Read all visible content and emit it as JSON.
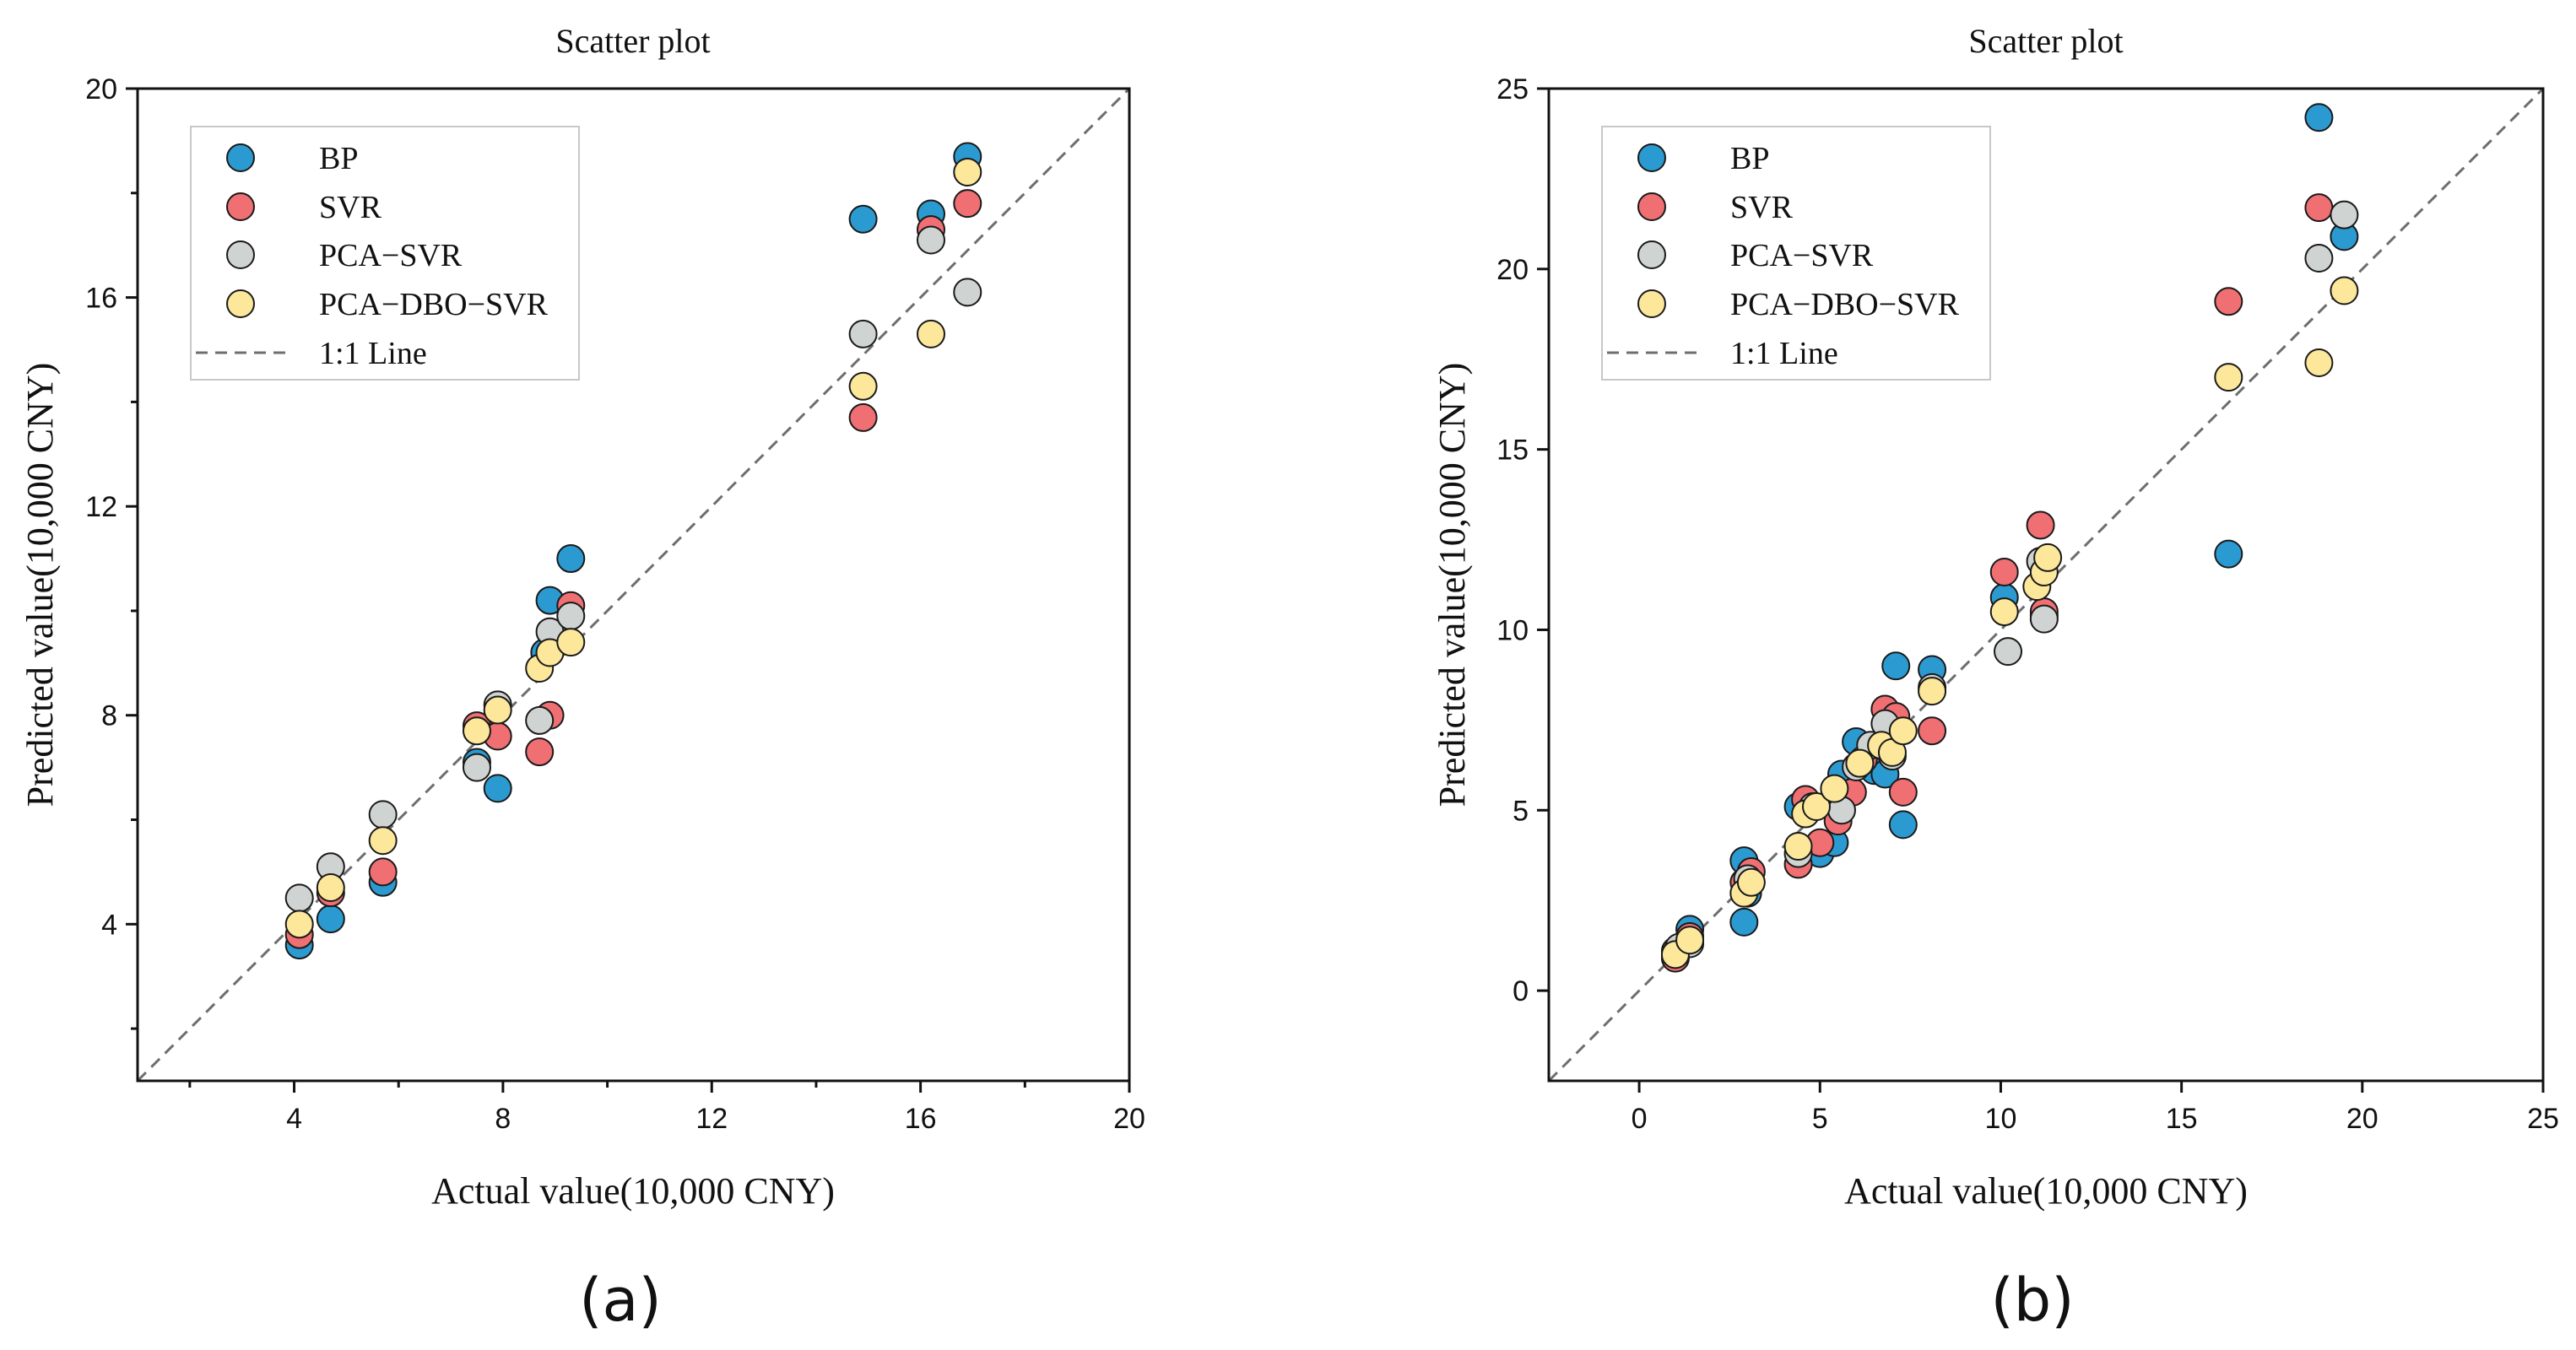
{
  "figure": {
    "panel_labels": [
      "(a)",
      "(b)"
    ]
  },
  "colors": {
    "BP": "#2b9ad0",
    "SVR": "#ef6f73",
    "PCA-SVR": "#cfd3d1",
    "PCA-DBO-SVR": "#fce79a",
    "edge": "#1a1a1a",
    "line": "#6e6e6e"
  },
  "chart_data": [
    {
      "type": "scatter",
      "title": "Scatter plot",
      "xlabel": "Actual value(10,000 CNY)",
      "ylabel": "Predicted value(10,000 CNY)",
      "xlim": [
        1,
        20
      ],
      "ylim": [
        1,
        20
      ],
      "xticks": [
        4,
        8,
        12,
        16,
        20
      ],
      "yticks": [
        4,
        8,
        12,
        16,
        20
      ],
      "xtick_labels": [
        "4",
        "8",
        "12",
        "16",
        "20"
      ],
      "ytick_labels": [
        "4",
        "8",
        "12",
        "16",
        "20"
      ],
      "legend": {
        "position": "top-left",
        "entries": [
          "BP",
          "SVR",
          "PCA−SVR",
          "PCA−DBO−SVR"
        ],
        "line_label": "1:1 Line"
      },
      "series": [
        {
          "name": "BP",
          "x": [
            4.1,
            4.7,
            5.7,
            7.5,
            7.9,
            8.8,
            8.9,
            9.3,
            14.9,
            16.2,
            16.9
          ],
          "y": [
            3.6,
            4.1,
            4.8,
            7.1,
            6.6,
            9.2,
            10.2,
            11.0,
            17.5,
            17.6,
            18.7
          ]
        },
        {
          "name": "SVR",
          "x": [
            4.1,
            4.7,
            5.7,
            7.5,
            7.9,
            8.7,
            8.9,
            9.3,
            14.9,
            16.2,
            16.9
          ],
          "y": [
            3.8,
            4.6,
            5.0,
            7.8,
            7.6,
            7.3,
            8.0,
            10.1,
            13.7,
            17.3,
            17.8
          ]
        },
        {
          "name": "PCA−SVR",
          "x": [
            4.1,
            4.7,
            5.7,
            7.5,
            7.9,
            8.7,
            8.9,
            9.3,
            14.9,
            16.2,
            16.9
          ],
          "y": [
            4.5,
            5.1,
            6.1,
            7.0,
            8.2,
            7.9,
            9.6,
            9.9,
            15.3,
            17.1,
            16.1
          ]
        },
        {
          "name": "PCA−DBO−SVR",
          "x": [
            4.1,
            4.7,
            5.7,
            7.5,
            7.9,
            8.7,
            8.9,
            9.3,
            14.9,
            16.2,
            16.9
          ],
          "y": [
            4.0,
            4.7,
            5.6,
            7.7,
            8.1,
            8.9,
            9.2,
            9.4,
            14.3,
            15.3,
            18.4
          ]
        }
      ]
    },
    {
      "type": "scatter",
      "title": "Scatter plot",
      "xlabel": "Actual value(10,000 CNY)",
      "ylabel": "Predicted value(10,000 CNY)",
      "xlim": [
        -2.5,
        25
      ],
      "ylim": [
        -2.5,
        25
      ],
      "xticks": [
        0,
        5,
        10,
        15,
        20,
        25
      ],
      "yticks": [
        0,
        5,
        10,
        15,
        20,
        25
      ],
      "xtick_labels": [
        "0",
        "5",
        "10",
        "15",
        "20",
        "25"
      ],
      "ytick_labels": [
        "0",
        "5",
        "10",
        "15",
        "20",
        "25"
      ],
      "legend": {
        "position": "top-left",
        "entries": [
          "BP",
          "SVR",
          "PCA−SVR",
          "PCA−DBO−SVR"
        ],
        "line_label": "1:1 Line"
      },
      "series": [
        {
          "name": "BP",
          "x": [
            1.0,
            1.4,
            2.9,
            2.9,
            3.0,
            4.4,
            5.0,
            5.4,
            5.6,
            6.0,
            6.5,
            6.8,
            7.1,
            7.3,
            8.1,
            10.1,
            11.2,
            16.3,
            18.8,
            19.5
          ],
          "y": [
            1.1,
            1.7,
            1.9,
            3.6,
            2.7,
            5.1,
            3.8,
            4.1,
            6.0,
            6.9,
            6.1,
            6.0,
            9.0,
            4.6,
            8.9,
            10.9,
            10.4,
            12.1,
            24.2,
            20.9
          ]
        },
        {
          "name": "SVR",
          "x": [
            1.0,
            1.4,
            2.9,
            3.1,
            4.4,
            4.6,
            5.0,
            5.5,
            5.9,
            6.2,
            6.8,
            7.1,
            7.3,
            8.1,
            10.1,
            11.1,
            11.2,
            16.3,
            18.8
          ],
          "y": [
            0.9,
            1.5,
            3.0,
            3.3,
            3.5,
            5.3,
            4.1,
            4.7,
            5.5,
            6.4,
            7.8,
            7.6,
            5.5,
            7.2,
            11.6,
            12.9,
            10.5,
            19.1,
            21.7
          ]
        },
        {
          "name": "PCA−SVR",
          "x": [
            1.1,
            1.4,
            3.0,
            4.4,
            4.8,
            5.6,
            6.0,
            6.4,
            6.8,
            7.0,
            8.1,
            10.2,
            11.1,
            11.2,
            18.8,
            19.5
          ],
          "y": [
            1.2,
            1.3,
            3.1,
            3.8,
            5.1,
            5.0,
            6.2,
            6.8,
            7.4,
            6.5,
            8.4,
            9.4,
            11.9,
            10.3,
            20.3,
            21.5
          ]
        },
        {
          "name": "PCA−DBO−SVR",
          "x": [
            1.0,
            1.4,
            2.9,
            3.1,
            4.4,
            4.6,
            4.9,
            5.4,
            6.1,
            6.7,
            7.0,
            7.3,
            8.1,
            10.1,
            11.0,
            11.2,
            11.3,
            16.3,
            18.8,
            19.5
          ],
          "y": [
            1.0,
            1.4,
            2.7,
            3.0,
            4.0,
            4.9,
            5.1,
            5.6,
            6.3,
            6.8,
            6.6,
            7.2,
            8.3,
            10.5,
            11.2,
            11.6,
            12.0,
            17.0,
            17.4,
            19.4
          ]
        }
      ]
    }
  ]
}
